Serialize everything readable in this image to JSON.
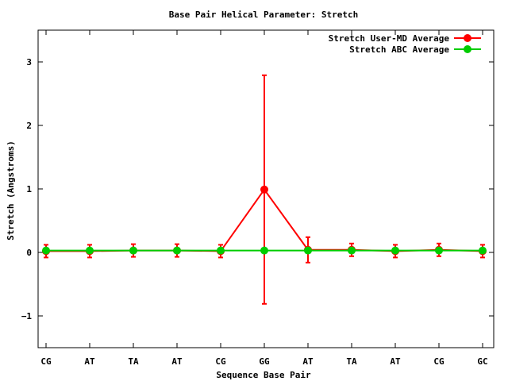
{
  "chart_data": {
    "type": "line",
    "title": "Base Pair Helical Parameter: Stretch",
    "xlabel": "Sequence Base Pair",
    "ylabel": "Stretch (Angstroms)",
    "categories": [
      "CG",
      "AT",
      "TA",
      "AT",
      "CG",
      "GG",
      "AT",
      "TA",
      "AT",
      "CG",
      "GC"
    ],
    "ylim": [
      -1.5,
      3.5
    ],
    "yticks": [
      -1,
      0,
      1,
      2,
      3
    ],
    "ytick_labels": [
      "−1",
      "0",
      "1",
      "2",
      "3"
    ],
    "legend_position": "top-right",
    "grid": false,
    "series": [
      {
        "name": "Stretch User-MD Average",
        "color": "#ff0000",
        "values": [
          0.02,
          0.02,
          0.03,
          0.03,
          0.02,
          0.99,
          0.04,
          0.04,
          0.02,
          0.04,
          0.02
        ],
        "error": [
          0.1,
          0.1,
          0.1,
          0.1,
          0.1,
          1.8,
          0.2,
          0.1,
          0.1,
          0.1,
          0.1
        ]
      },
      {
        "name": "Stretch ABC Average",
        "color": "#00cc00",
        "values": [
          0.03,
          0.03,
          0.03,
          0.03,
          0.03,
          0.03,
          0.03,
          0.03,
          0.03,
          0.03,
          0.03
        ],
        "error": [
          0,
          0,
          0,
          0,
          0,
          0,
          0,
          0,
          0,
          0,
          0
        ]
      }
    ]
  }
}
